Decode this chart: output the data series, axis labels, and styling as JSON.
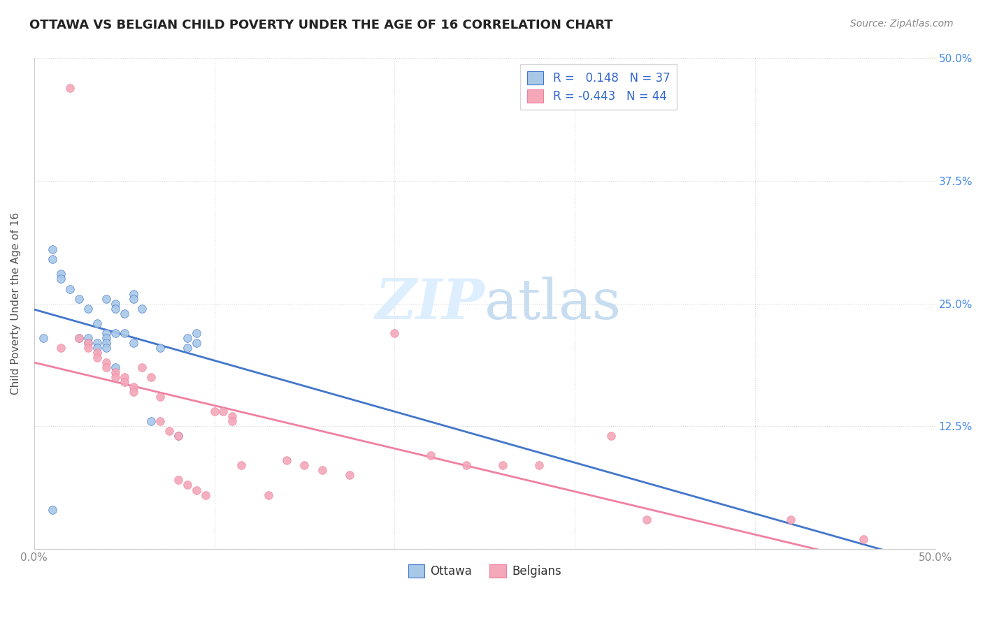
{
  "title": "OTTAWA VS BELGIAN CHILD POVERTY UNDER THE AGE OF 16 CORRELATION CHART",
  "source": "Source: ZipAtlas.com",
  "ylabel": "Child Poverty Under the Age of 16",
  "xlim": [
    0.0,
    0.5
  ],
  "ylim": [
    0.0,
    0.5
  ],
  "ottawa_R": 0.148,
  "ottawa_N": 37,
  "belgian_R": -0.443,
  "belgian_N": 44,
  "ottawa_color": "#a8c8e8",
  "belgian_color": "#f4a8b8",
  "ottawa_line_color": "#4477cc",
  "belgian_line_color": "#f080a0",
  "dashed_line_color": "#aaccee",
  "watermark_color": "#ddeeff",
  "ottawa_points": [
    [
      0.005,
      0.215
    ],
    [
      0.01,
      0.305
    ],
    [
      0.01,
      0.295
    ],
    [
      0.015,
      0.28
    ],
    [
      0.015,
      0.275
    ],
    [
      0.02,
      0.265
    ],
    [
      0.025,
      0.255
    ],
    [
      0.025,
      0.215
    ],
    [
      0.03,
      0.245
    ],
    [
      0.03,
      0.215
    ],
    [
      0.03,
      0.21
    ],
    [
      0.035,
      0.23
    ],
    [
      0.035,
      0.21
    ],
    [
      0.035,
      0.205
    ],
    [
      0.04,
      0.255
    ],
    [
      0.04,
      0.22
    ],
    [
      0.04,
      0.215
    ],
    [
      0.04,
      0.21
    ],
    [
      0.04,
      0.205
    ],
    [
      0.045,
      0.25
    ],
    [
      0.045,
      0.245
    ],
    [
      0.045,
      0.22
    ],
    [
      0.05,
      0.24
    ],
    [
      0.05,
      0.22
    ],
    [
      0.055,
      0.26
    ],
    [
      0.055,
      0.255
    ],
    [
      0.06,
      0.245
    ],
    [
      0.065,
      0.13
    ],
    [
      0.07,
      0.205
    ],
    [
      0.08,
      0.115
    ],
    [
      0.085,
      0.215
    ],
    [
      0.085,
      0.205
    ],
    [
      0.09,
      0.22
    ],
    [
      0.09,
      0.21
    ],
    [
      0.01,
      0.04
    ],
    [
      0.045,
      0.185
    ],
    [
      0.055,
      0.21
    ]
  ],
  "belgian_points": [
    [
      0.02,
      0.47
    ],
    [
      0.015,
      0.205
    ],
    [
      0.025,
      0.215
    ],
    [
      0.03,
      0.21
    ],
    [
      0.03,
      0.205
    ],
    [
      0.035,
      0.2
    ],
    [
      0.035,
      0.195
    ],
    [
      0.04,
      0.19
    ],
    [
      0.04,
      0.185
    ],
    [
      0.045,
      0.18
    ],
    [
      0.045,
      0.175
    ],
    [
      0.05,
      0.175
    ],
    [
      0.05,
      0.17
    ],
    [
      0.055,
      0.165
    ],
    [
      0.055,
      0.16
    ],
    [
      0.06,
      0.185
    ],
    [
      0.065,
      0.175
    ],
    [
      0.07,
      0.155
    ],
    [
      0.07,
      0.13
    ],
    [
      0.075,
      0.12
    ],
    [
      0.08,
      0.115
    ],
    [
      0.08,
      0.07
    ],
    [
      0.085,
      0.065
    ],
    [
      0.09,
      0.06
    ],
    [
      0.095,
      0.055
    ],
    [
      0.1,
      0.14
    ],
    [
      0.105,
      0.14
    ],
    [
      0.11,
      0.135
    ],
    [
      0.11,
      0.13
    ],
    [
      0.115,
      0.085
    ],
    [
      0.13,
      0.055
    ],
    [
      0.14,
      0.09
    ],
    [
      0.15,
      0.085
    ],
    [
      0.16,
      0.08
    ],
    [
      0.175,
      0.075
    ],
    [
      0.2,
      0.22
    ],
    [
      0.22,
      0.095
    ],
    [
      0.24,
      0.085
    ],
    [
      0.26,
      0.085
    ],
    [
      0.28,
      0.085
    ],
    [
      0.32,
      0.115
    ],
    [
      0.34,
      0.03
    ],
    [
      0.42,
      0.03
    ],
    [
      0.46,
      0.01
    ]
  ]
}
